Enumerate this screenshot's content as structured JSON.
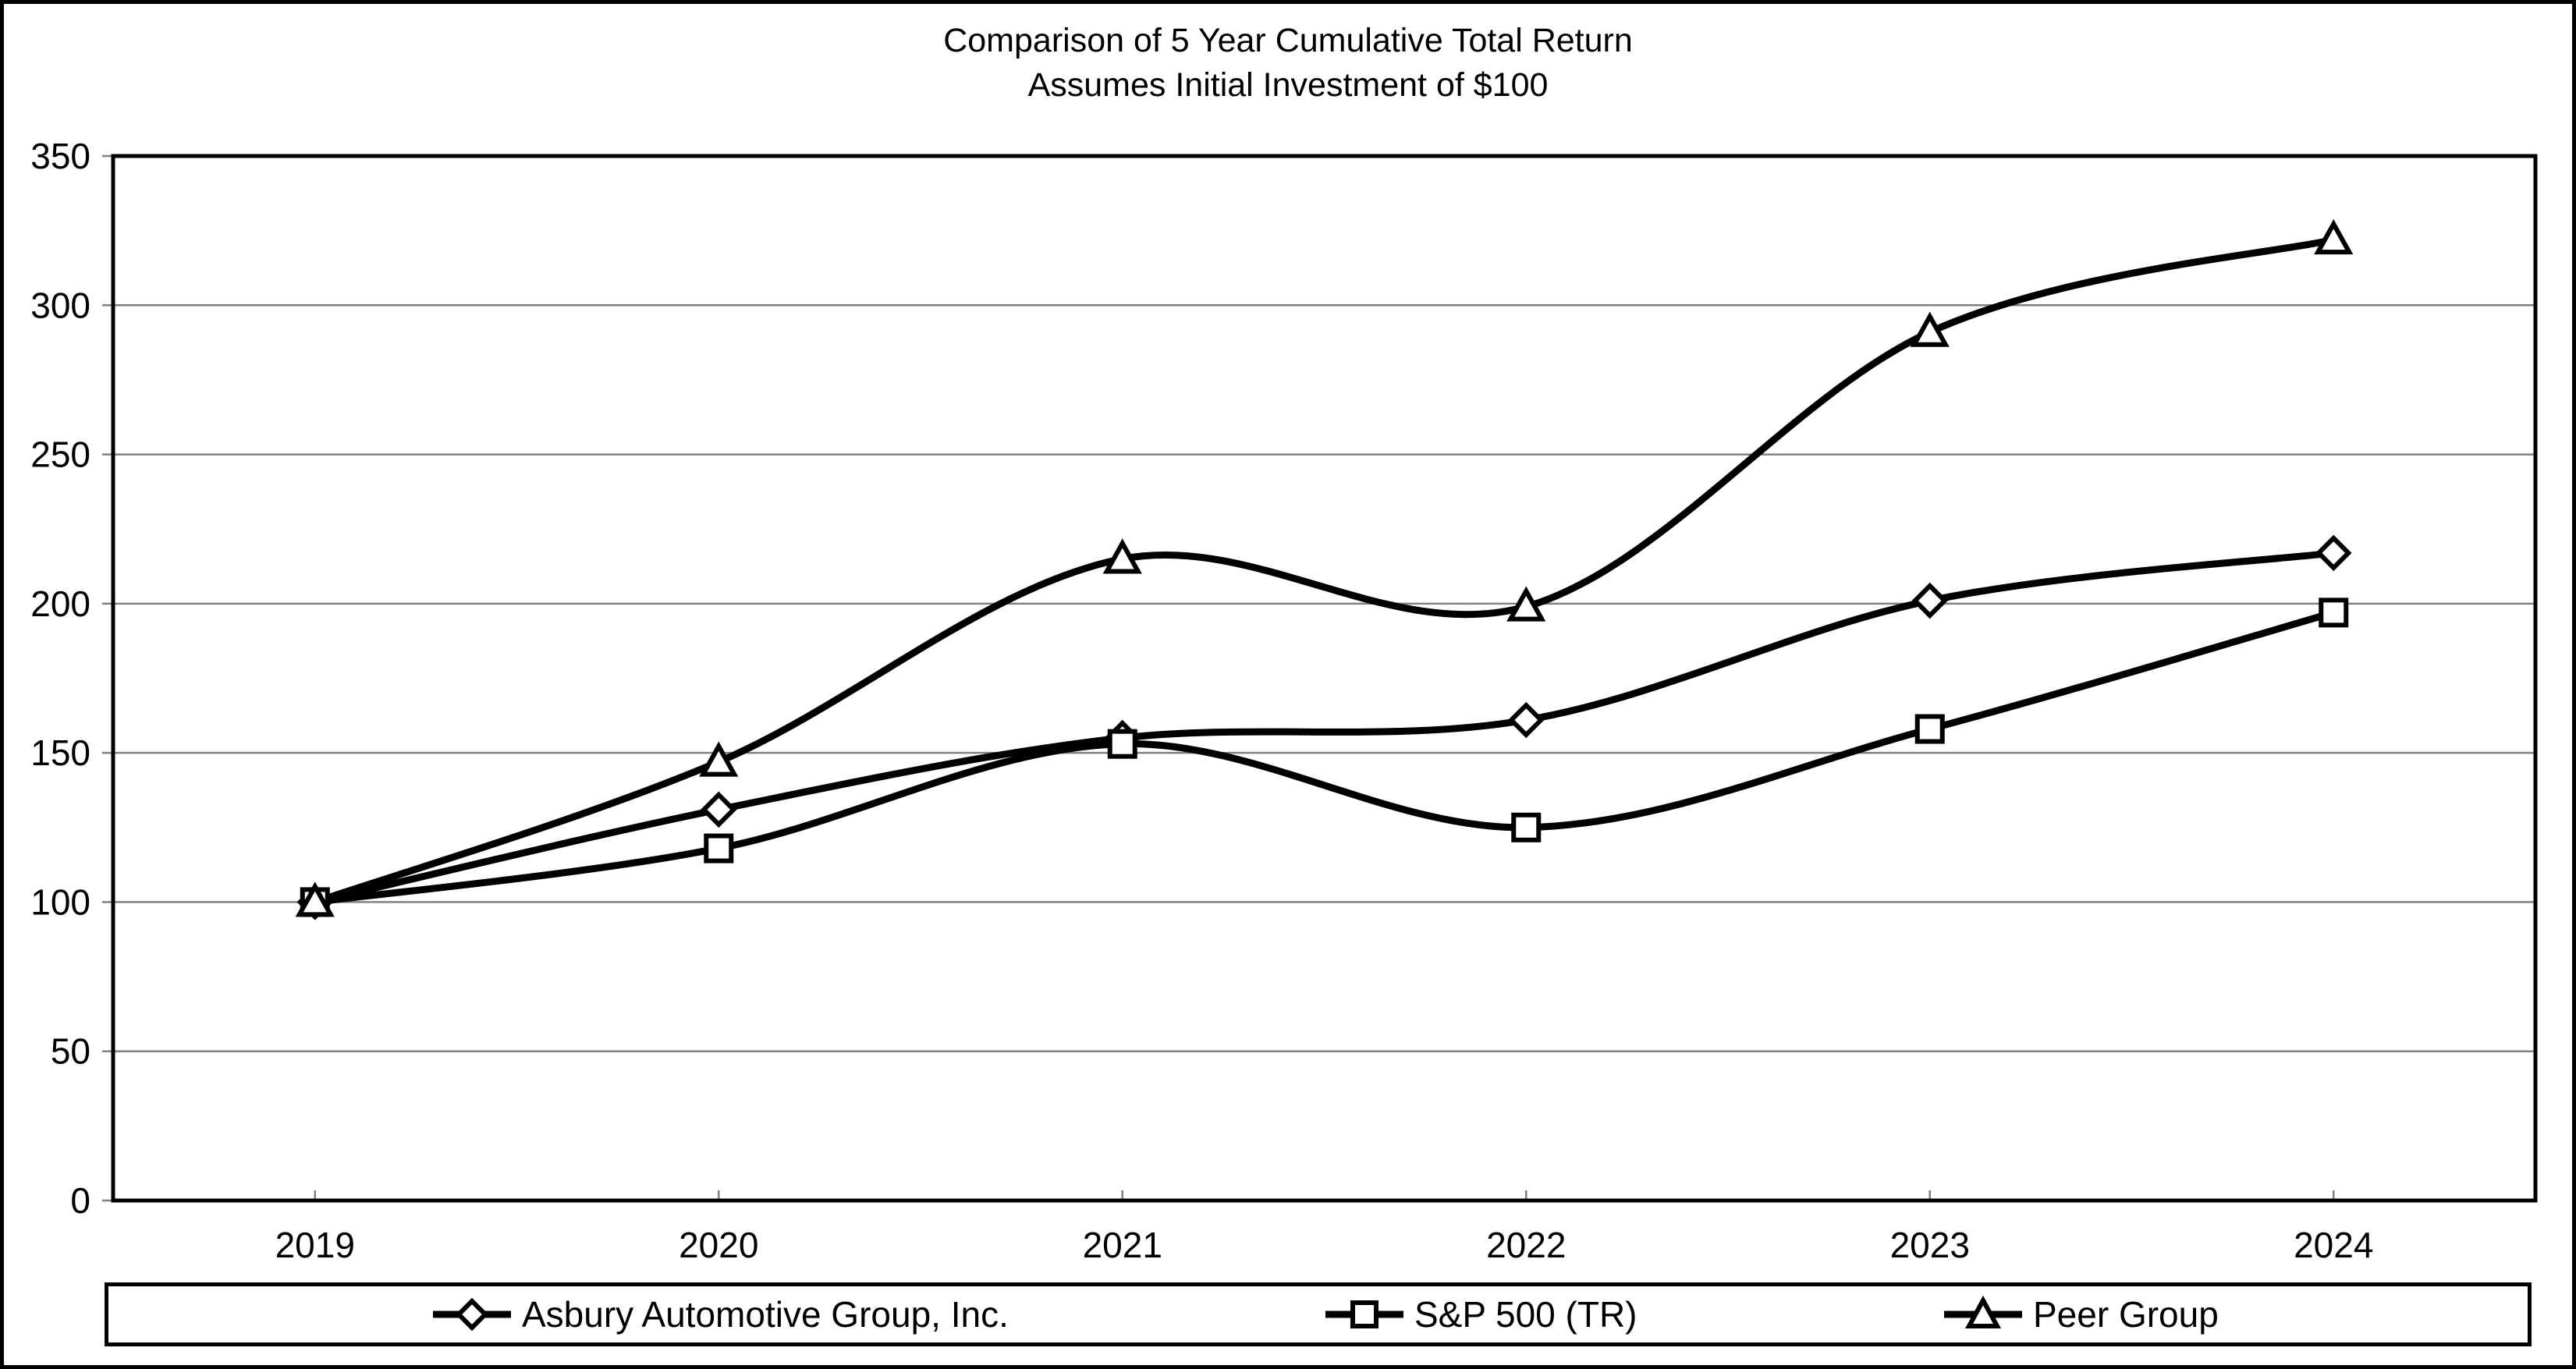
{
  "title": {
    "line1": "Comparison of 5 Year Cumulative Total Return",
    "line2": "Assumes Initial Investment of $100"
  },
  "chart_data": {
    "type": "line",
    "smooth": true,
    "x": [
      "2019",
      "2020",
      "2021",
      "2022",
      "2023",
      "2024"
    ],
    "series": [
      {
        "name": "Asbury Automotive Group, Inc.",
        "marker": "diamond",
        "values": [
          100,
          131,
          155,
          161,
          201,
          217
        ]
      },
      {
        "name": "S&P 500 (TR)",
        "marker": "square",
        "values": [
          100,
          118,
          153,
          125,
          158,
          197
        ]
      },
      {
        "name": "Peer Group",
        "marker": "triangle",
        "values": [
          100,
          147,
          215,
          199,
          291,
          322
        ]
      }
    ],
    "ylim": [
      0,
      350
    ],
    "y_ticks": [
      0,
      50,
      100,
      150,
      200,
      250,
      300,
      350
    ],
    "grid": true,
    "legend_position": "bottom",
    "colors": {
      "line": "#000000",
      "marker_fill": "#ffffff",
      "grid": "#808080",
      "tick": "#808080",
      "text": "#000000",
      "plot_border": "#000000"
    }
  }
}
